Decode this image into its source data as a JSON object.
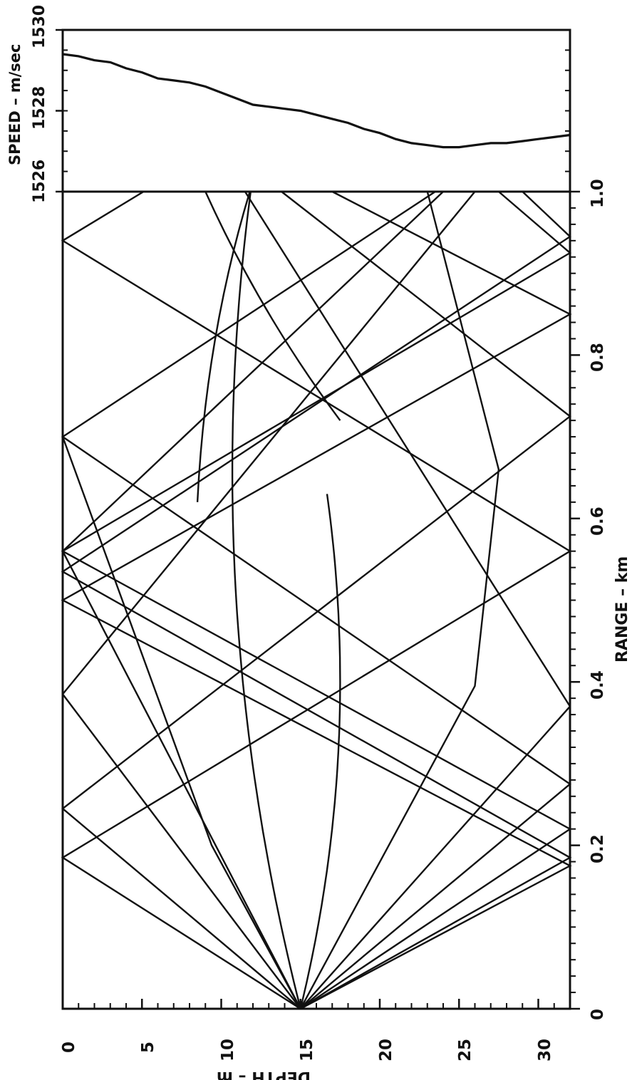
{
  "chart_data": [
    {
      "type": "line",
      "name": "sound-speed-profile",
      "xlabel": "DEPTH – m",
      "ylabel": "SPEED – m/sec",
      "xlim": [
        0,
        32
      ],
      "ylim": [
        1526,
        1530
      ],
      "x_ticks": [
        "0",
        "5",
        "10",
        "15",
        "20",
        "25",
        "30"
      ],
      "y_ticks": [
        "1526",
        "1528",
        "1530"
      ],
      "x": [
        0,
        1,
        2,
        3,
        4,
        5,
        6,
        7,
        8,
        9,
        10,
        11,
        12,
        13,
        14,
        15,
        16,
        17,
        18,
        19,
        20,
        21,
        22,
        23,
        24,
        25,
        26,
        27,
        28,
        29,
        30,
        31,
        32
      ],
      "values": [
        1529.4,
        1529.35,
        1529.25,
        1529.2,
        1529.05,
        1528.95,
        1528.8,
        1528.75,
        1528.7,
        1528.6,
        1528.45,
        1528.3,
        1528.15,
        1528.1,
        1528.05,
        1528.0,
        1527.9,
        1527.8,
        1527.7,
        1527.55,
        1527.45,
        1527.3,
        1527.2,
        1527.15,
        1527.1,
        1527.1,
        1527.15,
        1527.2,
        1527.2,
        1527.25,
        1527.3,
        1527.35,
        1527.4
      ]
    },
    {
      "type": "line",
      "name": "ray-trace",
      "xlabel": "DEPTH – m",
      "ylabel": "RANGE – km",
      "xlim": [
        0,
        32
      ],
      "ylim": [
        0,
        1.0
      ],
      "x_ticks": [
        "0",
        "5",
        "10",
        "15",
        "20",
        "25",
        "30"
      ],
      "y_ticks": [
        "0",
        "0.2",
        "0.4",
        "0.6",
        "0.8",
        "1.0"
      ],
      "source": {
        "depth": 15,
        "range": 0
      },
      "rays": [
        {
          "launch_angle_deg": -2.7,
          "turn": [
            [
              1.5,
              0.6585,
              10.7
            ]
          ]
        },
        {
          "launch_angle_deg": 2.7,
          "turn": [
            [
              0.63,
              0.4,
              17.5
            ]
          ]
        },
        {
          "launch_angle_deg": -4.2,
          "bounces": [
            [
              0.93,
              0
            ],
            [
              1.0,
              1.5
            ]
          ],
          "values": [
            [
              0,
              15
            ],
            [
              0.2,
              9.4
            ],
            [
              0.7,
              0
            ]
          ]
        },
        {
          "launch_angle_deg": -5.0,
          "values": [
            [
              0,
              15
            ],
            [
              0.185,
              0
            ],
            [
              0.56,
              32
            ],
            [
              0.94,
              0
            ],
            [
              1.0,
              5.1
            ]
          ]
        },
        {
          "launch_angle_deg": -4.5,
          "values": [
            [
              0,
              15
            ],
            [
              0.245,
              0
            ],
            [
              0.725,
              32
            ],
            [
              1.0,
              13.8
            ]
          ]
        },
        {
          "launch_angle_deg": -3.6,
          "values": [
            [
              0,
              15
            ],
            [
              0.385,
              0
            ],
            [
              1.0,
              26
            ]
          ]
        },
        {
          "launch_angle_deg": -3.3,
          "values": [
            [
              0,
              15
            ],
            [
              0.56,
              0
            ],
            [
              1.0,
              24
            ]
          ]
        },
        {
          "launch_angle_deg": 2.6,
          "values": [
            [
              0,
              15
            ],
            [
              0.395,
              26
            ],
            [
              0.66,
              27.5
            ],
            [
              1.0,
              23
            ]
          ]
        },
        {
          "launch_angle_deg": 3.4,
          "values": [
            [
              0,
              15
            ],
            [
              0.37,
              32
            ],
            [
              1.0,
              11.5
            ]
          ]
        },
        {
          "launch_angle_deg": 4.2,
          "values": [
            [
              0,
              15
            ],
            [
              0.275,
              32
            ],
            [
              0.7,
              0
            ],
            [
              1.0,
              23.5
            ]
          ]
        },
        {
          "launch_angle_deg": 4.8,
          "values": [
            [
              0,
              15
            ],
            [
              0.22,
              32
            ],
            [
              0.56,
              0
            ],
            [
              0.925,
              32
            ],
            [
              1.0,
              27.5
            ]
          ]
        },
        {
          "launch_angle_deg": 5.5,
          "values": [
            [
              0,
              15
            ],
            [
              0.185,
              32
            ],
            [
              0.535,
              0
            ],
            [
              0.945,
              32
            ],
            [
              1.0,
              29
            ]
          ]
        },
        {
          "launch_angle_deg": 5.8,
          "values": [
            [
              0,
              15
            ],
            [
              0.175,
              32
            ],
            [
              0.5,
              0
            ],
            [
              0.85,
              32
            ],
            [
              1.0,
              17
            ]
          ]
        }
      ]
    }
  ],
  "labels": {
    "speed_axis": "SPEED – m/sec",
    "range_axis": "RANGE – km",
    "depth_axis": "DEPTH – m"
  }
}
